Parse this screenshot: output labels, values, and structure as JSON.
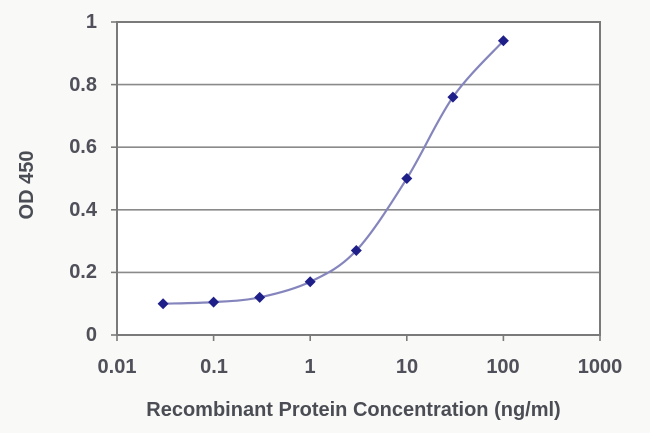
{
  "chart_data": {
    "type": "line",
    "title": "",
    "xlabel": "Recombinant Protein Concentration (ng/ml)",
    "ylabel": "OD 450",
    "x_scale": "log",
    "xlim": [
      0.01,
      1000
    ],
    "ylim": [
      0,
      1
    ],
    "x": [
      0.03,
      0.1,
      0.3,
      1,
      3,
      10,
      30,
      100
    ],
    "y": [
      0.1,
      0.105,
      0.12,
      0.17,
      0.27,
      0.5,
      0.76,
      0.94
    ],
    "x_ticks": [
      "0.01",
      "0.1",
      "1",
      "10",
      "100",
      "1000"
    ],
    "y_ticks": [
      "1",
      "0.8",
      "0.6",
      "0.4",
      "0.2",
      "0"
    ],
    "grid": "horizontal",
    "legend": "none",
    "marker": "diamond",
    "colors": {
      "marker": "#1f1f8a",
      "line": "#8585bd",
      "grid": "#8a8a8a",
      "border": "#7a7a7a",
      "tick_text": "#50505a",
      "title_text": "#4b4d55",
      "plot_bg": "#ffffff",
      "page_bg": "#f9f9f7"
    }
  }
}
